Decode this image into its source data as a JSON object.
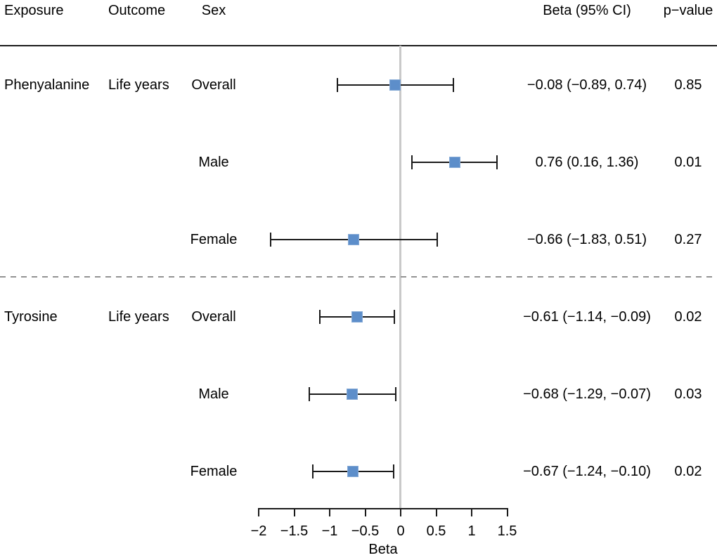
{
  "columns": {
    "exposure": "Exposure",
    "outcome": "Outcome",
    "sex": "Sex",
    "beta_ci": "Beta (95% CI)",
    "p_value": "p−value"
  },
  "chart_data": {
    "type": "forest",
    "title": "",
    "xlabel": "Beta",
    "xlim": [
      -2,
      1.5
    ],
    "ticks": [
      -2,
      -1.5,
      -1,
      -0.5,
      0,
      0.5,
      1,
      1.5
    ],
    "tick_labels": [
      "−2",
      "−1.5",
      "−1",
      "−0.5",
      "0",
      "0.5",
      "1",
      "1.5"
    ],
    "reference_line": 0,
    "grid": false,
    "marker_color": "#5d8eca",
    "marker_edge_color": "#86aad6",
    "line_color": "#1a1a1a",
    "rows": [
      {
        "exposure": "Phenyalanine",
        "outcome": "Life years",
        "sex": "Overall",
        "beta": -0.08,
        "lo": -0.89,
        "hi": 0.74,
        "beta_ci": "−0.08 (−0.89, 0.74)",
        "p": "0.85"
      },
      {
        "exposure": "",
        "outcome": "",
        "sex": "Male",
        "beta": 0.76,
        "lo": 0.16,
        "hi": 1.36,
        "beta_ci": "0.76 (0.16, 1.36)",
        "p": "0.01"
      },
      {
        "exposure": "",
        "outcome": "",
        "sex": "Female",
        "beta": -0.66,
        "lo": -1.83,
        "hi": 0.51,
        "beta_ci": "−0.66 (−1.83, 0.51)",
        "p": "0.27"
      },
      {
        "exposure": "Tyrosine",
        "outcome": "Life years",
        "sex": "Overall",
        "beta": -0.61,
        "lo": -1.14,
        "hi": -0.09,
        "beta_ci": "−0.61 (−1.14, −0.09)",
        "p": "0.02"
      },
      {
        "exposure": "",
        "outcome": "",
        "sex": "Male",
        "beta": -0.68,
        "lo": -1.29,
        "hi": -0.07,
        "beta_ci": "−0.68 (−1.29, −0.07)",
        "p": "0.03"
      },
      {
        "exposure": "",
        "outcome": "",
        "sex": "Female",
        "beta": -0.67,
        "lo": -1.24,
        "hi": -0.1,
        "beta_ci": "−0.67 (−1.24, −0.10)",
        "p": "0.02"
      }
    ],
    "group_divider_after_row_index": 2
  }
}
